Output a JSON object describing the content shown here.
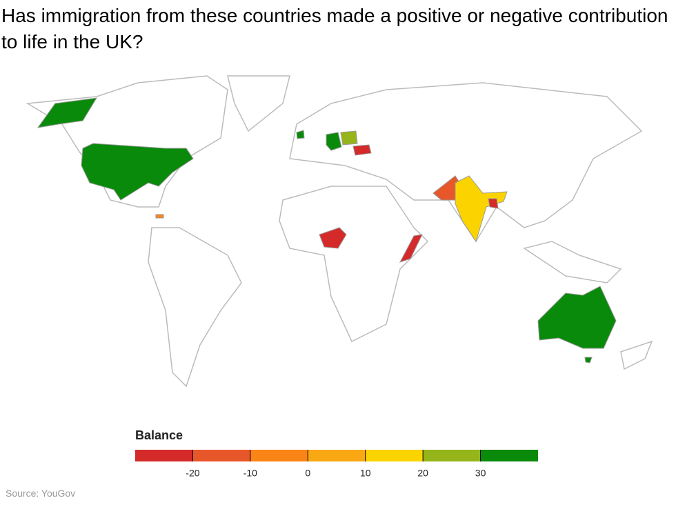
{
  "title": "Has immigration from these countries made a positive or negative contribution to life in the UK?",
  "source": "Source: YouGov",
  "map": {
    "values": [
      35,
      35,
      32,
      25,
      -25,
      -15,
      15,
      -25,
      -25,
      -25,
      35,
      -5
    ]
  },
  "legend": {
    "title": "Balance",
    "xlim": [
      -30,
      40
    ],
    "bins": [
      -30,
      -20,
      -10,
      0,
      10,
      20,
      30,
      40
    ],
    "colors": [
      "#d42a2a",
      "#e8572a",
      "#fb8416",
      "#f9a814",
      "#fbd400",
      "#95b51a",
      "#0a8a0a"
    ],
    "xticks": [
      -20,
      -10,
      0,
      10,
      20,
      30
    ]
  }
}
